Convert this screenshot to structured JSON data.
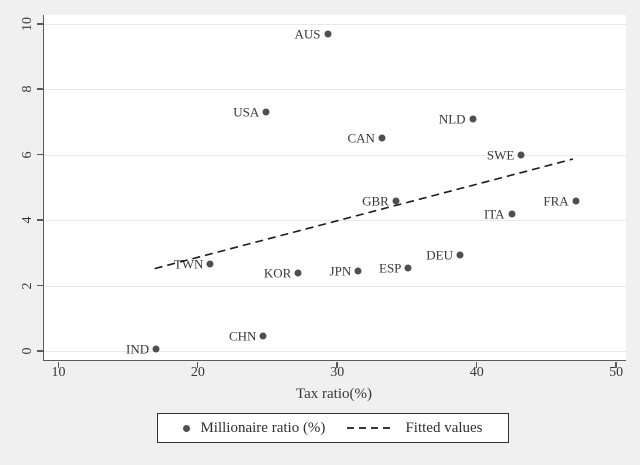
{
  "chart_data": {
    "type": "scatter",
    "title": "",
    "xlabel": "Tax ratio(%)",
    "ylabel": "",
    "x_ticks": [
      10,
      20,
      30,
      40,
      50
    ],
    "y_ticks": [
      0,
      2,
      4,
      6,
      8,
      10
    ],
    "xlim": [
      8.96,
      50.71
    ],
    "ylim": [
      -0.28,
      10.28
    ],
    "grid": "horizontal",
    "legend_position": "bottom-center",
    "points": [
      {
        "label": "AUS",
        "x": 29.3,
        "y": 9.7
      },
      {
        "label": "USA",
        "x": 24.9,
        "y": 7.3
      },
      {
        "label": "NLD",
        "x": 39.7,
        "y": 7.1
      },
      {
        "label": "CAN",
        "x": 33.2,
        "y": 6.5
      },
      {
        "label": "SWE",
        "x": 43.2,
        "y": 6.0
      },
      {
        "label": "GBR",
        "x": 34.2,
        "y": 4.6
      },
      {
        "label": "FRA",
        "x": 47.1,
        "y": 4.6
      },
      {
        "label": "ITA",
        "x": 42.5,
        "y": 4.2
      },
      {
        "label": "DEU",
        "x": 38.8,
        "y": 2.95
      },
      {
        "label": "ESP",
        "x": 35.1,
        "y": 2.55
      },
      {
        "label": "JPN",
        "x": 31.5,
        "y": 2.45
      },
      {
        "label": "KOR",
        "x": 27.2,
        "y": 2.4
      },
      {
        "label": "TWN",
        "x": 20.9,
        "y": 2.65
      },
      {
        "label": "CHN",
        "x": 24.7,
        "y": 0.45
      },
      {
        "label": "IND",
        "x": 17.0,
        "y": 0.07
      }
    ],
    "fitted_line": {
      "x_start": 16.9,
      "y_start": 2.52,
      "x_end": 46.9,
      "y_end": 5.87
    },
    "legend": [
      {
        "marker": "dot",
        "label": "Millionaire ratio (%)"
      },
      {
        "marker": "dashed-line",
        "label": "Fitted values"
      }
    ]
  },
  "colors": {
    "background": "#f0f0f0",
    "plot_background": "#ffffff",
    "gridline": "#e9e9e9",
    "axis": "#5a5a5a",
    "marker": "#4f4f4f",
    "fitted_line": "#1c1c1c",
    "text": "#383838"
  }
}
